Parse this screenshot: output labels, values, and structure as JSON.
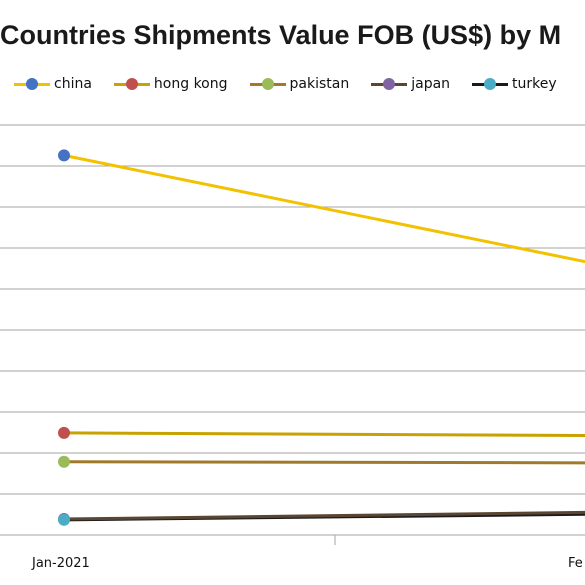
{
  "chart_data": {
    "type": "line",
    "title": "Countries Shipments Value FOB (US$) by M",
    "categories": [
      "Jan-2021",
      "Fe"
    ],
    "series": [
      {
        "name": "china",
        "line_color": "#f2c200",
        "marker_color": "#4472c4",
        "values": [
          970,
          682
        ]
      },
      {
        "name": "hong kong",
        "line_color": "#c8a200",
        "marker_color": "#c0504d",
        "values": [
          239,
          232
        ]
      },
      {
        "name": "pakistan",
        "line_color": "#a07a2a",
        "marker_color": "#9bbb59",
        "values": [
          163,
          160
        ]
      },
      {
        "name": "japan",
        "line_color": "#5a4632",
        "marker_color": "#8064a2",
        "values": [
          12,
          30
        ]
      },
      {
        "name": "turkey",
        "line_color": "#1a1a1a",
        "marker_color": "#4bacc6",
        "values": [
          10,
          25
        ]
      }
    ],
    "ylim": [
      -30,
      1050
    ],
    "grid": true,
    "legend_position": "top"
  }
}
